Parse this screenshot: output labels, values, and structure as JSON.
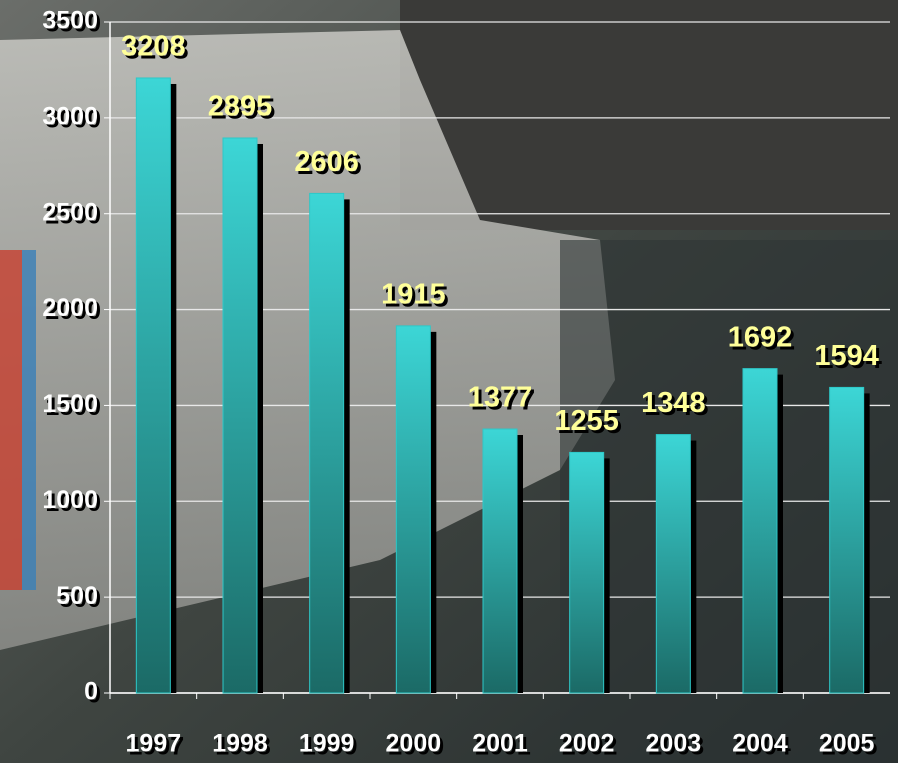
{
  "chart_data": {
    "type": "bar",
    "categories": [
      "1997",
      "1998",
      "1999",
      "2000",
      "2001",
      "2002",
      "2003",
      "2004",
      "2005"
    ],
    "values": [
      3208,
      2895,
      2606,
      1915,
      1377,
      1255,
      1348,
      1692,
      1594
    ],
    "color": "#2ec8c8",
    "ylim": [
      0,
      3500
    ],
    "yticks": [
      0,
      500,
      1000,
      1500,
      2000,
      2500,
      3000,
      3500
    ],
    "grid": true
  }
}
